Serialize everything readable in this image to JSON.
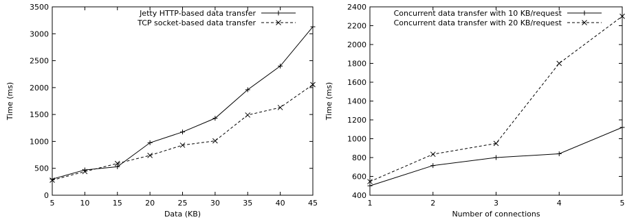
{
  "chart_data": [
    {
      "type": "line",
      "xlabel": "Data (KB)",
      "ylabel": "Time (ms)",
      "xlim": [
        5,
        45
      ],
      "ylim": [
        0,
        3500
      ],
      "xticks": [
        5,
        10,
        15,
        20,
        25,
        30,
        35,
        40,
        45
      ],
      "yticks": [
        0,
        500,
        1000,
        1500,
        2000,
        2500,
        3000,
        3500
      ],
      "grid": false,
      "legend_position": "top-right",
      "x": [
        5,
        10,
        15,
        20,
        25,
        30,
        35,
        40,
        45
      ],
      "series": [
        {
          "name": "Jetty HTTP-based data transfer",
          "line": "solid",
          "marker": "plus",
          "values": [
            300,
            470,
            530,
            975,
            1175,
            1430,
            1960,
            2400,
            3130
          ]
        },
        {
          "name": "TCP socket-based data transfer",
          "line": "dashed",
          "marker": "cross",
          "values": [
            280,
            440,
            590,
            740,
            930,
            1010,
            1490,
            1630,
            2055
          ]
        }
      ]
    },
    {
      "type": "line",
      "xlabel": "Number of connections",
      "ylabel": "Time (ms)",
      "xlim": [
        1,
        5
      ],
      "ylim": [
        400,
        2400
      ],
      "xticks": [
        1,
        2,
        3,
        4,
        5
      ],
      "yticks": [
        400,
        600,
        800,
        1000,
        1200,
        1400,
        1600,
        1800,
        2000,
        2200,
        2400
      ],
      "grid": false,
      "legend_position": "top-right",
      "x": [
        1,
        2,
        3,
        4,
        5
      ],
      "series": [
        {
          "name": "Concurrent data transfer with 10 KB/request",
          "line": "solid",
          "marker": "plus",
          "values": [
            500,
            715,
            800,
            840,
            1120
          ]
        },
        {
          "name": "Concurrent data transfer with 20 KB/request",
          "line": "dashed",
          "marker": "cross",
          "values": [
            545,
            835,
            950,
            1800,
            2300
          ]
        }
      ]
    }
  ]
}
